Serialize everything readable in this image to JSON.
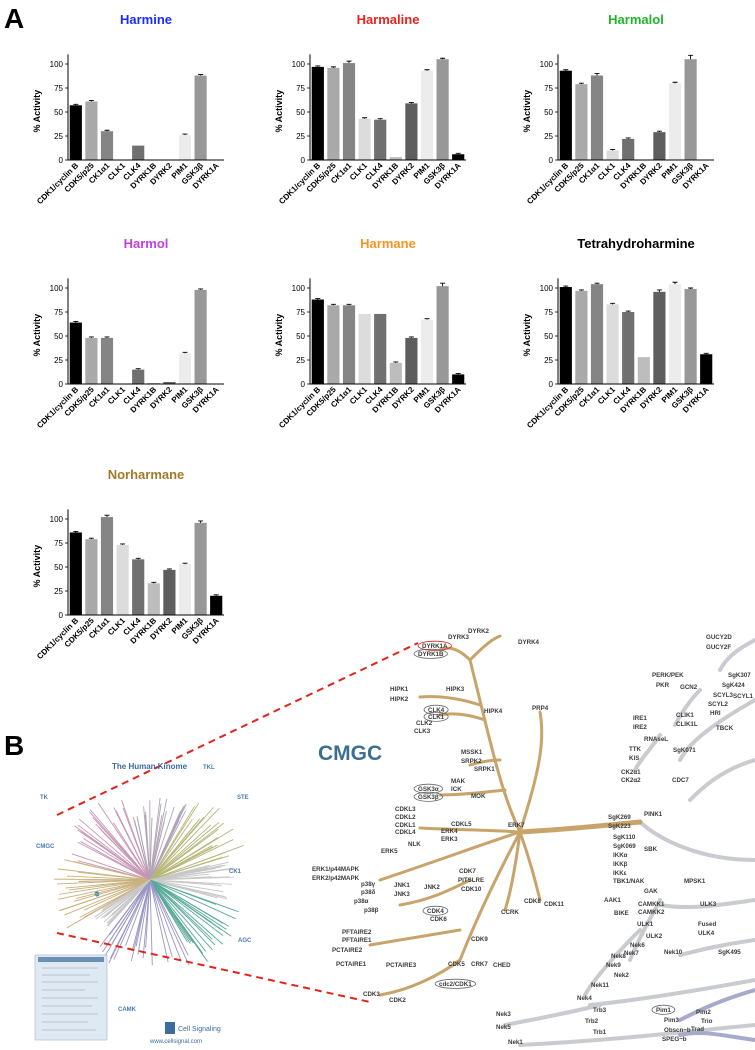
{
  "panel_labels": [
    "A",
    "B"
  ],
  "chart_data": [
    {
      "type": "bar",
      "title": "Harmine",
      "title_color": "#1a2bff",
      "ylabel": "% Activity",
      "categories": [
        "CDK1/cyclin B",
        "CDK5/p25",
        "CK1α1",
        "CLK1",
        "CLK4",
        "DYRK1B",
        "DYRK2",
        "PIM1",
        "GSK3β",
        "DYRK1A"
      ],
      "values": [
        57,
        61,
        30,
        0,
        15,
        0,
        0,
        26,
        88,
        0
      ],
      "errors": [
        1,
        1,
        1,
        0,
        0,
        0,
        0,
        1,
        1,
        0
      ],
      "colors": [
        "#000000",
        "#a9a9a9",
        "#858585",
        "#dcdcdc",
        "#707070",
        "#bdbdbd",
        "#5e5e5e",
        "#ececec",
        "#989898",
        "#000000"
      ],
      "ylim": [
        0,
        110
      ],
      "yticks": [
        0,
        25,
        50,
        75,
        100
      ]
    },
    {
      "type": "bar",
      "title": "Harmaline",
      "title_color": "#e8231e",
      "ylabel": "% Activity",
      "categories": [
        "CDK1/cyclin B",
        "CDK5/p25",
        "CK1α1",
        "CLK1",
        "CLK4",
        "DYRK1B",
        "DYRK2",
        "PIM1",
        "GSK3β",
        "DYRK1A"
      ],
      "values": [
        97,
        96,
        101,
        43,
        42,
        3,
        59,
        93,
        105,
        6
      ],
      "errors": [
        1,
        1,
        2,
        1,
        1,
        0,
        1,
        1,
        1,
        1
      ],
      "colors": [
        "#000000",
        "#a9a9a9",
        "#858585",
        "#dcdcdc",
        "#707070",
        "#bdbdbd",
        "#5e5e5e",
        "#ececec",
        "#989898",
        "#000000"
      ],
      "ylim": [
        0,
        110
      ],
      "yticks": [
        0,
        25,
        50,
        75,
        100
      ]
    },
    {
      "type": "bar",
      "title": "Harmalol",
      "title_color": "#22b52a",
      "ylabel": "% Activity",
      "categories": [
        "CDK1/cyclin B",
        "CDK5/p25",
        "CK1α1",
        "CLK1",
        "CLK4",
        "DYRK1B",
        "DYRK2",
        "PIM1",
        "GSK3β",
        "DYRK1A"
      ],
      "values": [
        93,
        79,
        88,
        10,
        22,
        0,
        29,
        80,
        105,
        0
      ],
      "errors": [
        1,
        1,
        2,
        1,
        1,
        0,
        1,
        1,
        4,
        0
      ],
      "colors": [
        "#000000",
        "#a9a9a9",
        "#858585",
        "#dcdcdc",
        "#707070",
        "#bdbdbd",
        "#5e5e5e",
        "#ececec",
        "#989898",
        "#000000"
      ],
      "ylim": [
        0,
        110
      ],
      "yticks": [
        0,
        25,
        50,
        75,
        100
      ]
    },
    {
      "type": "bar",
      "title": "Harmol",
      "title_color": "#c23fe0",
      "ylabel": "% Activity",
      "categories": [
        "CDK1/cyclin B",
        "CDK5/p25",
        "CK1α1",
        "CLK1",
        "CLK4",
        "DYRK1B",
        "DYRK2",
        "PIM1",
        "GSK3β",
        "DYRK1A"
      ],
      "values": [
        64,
        48,
        48,
        0,
        15,
        1,
        2,
        32,
        98,
        0
      ],
      "errors": [
        1,
        1,
        1,
        0,
        1,
        0,
        0,
        1,
        1,
        0
      ],
      "colors": [
        "#000000",
        "#a9a9a9",
        "#858585",
        "#dcdcdc",
        "#707070",
        "#bdbdbd",
        "#5e5e5e",
        "#ececec",
        "#989898",
        "#000000"
      ],
      "ylim": [
        0,
        110
      ],
      "yticks": [
        0,
        25,
        50,
        75,
        100
      ]
    },
    {
      "type": "bar",
      "title": "Harmane",
      "title_color": "#f7941d",
      "ylabel": "% Activity",
      "categories": [
        "CDK1/cyclin B",
        "CDK5/p25",
        "CK1α1",
        "CLK1",
        "CLK4",
        "DYRK1B",
        "DYRK2",
        "PIM1",
        "GSK3β",
        "DYRK1A"
      ],
      "values": [
        88,
        82,
        82,
        73,
        73,
        22,
        48,
        67,
        102,
        10
      ],
      "errors": [
        1,
        1,
        1,
        0,
        0,
        1,
        1,
        1,
        3,
        1
      ],
      "colors": [
        "#000000",
        "#a9a9a9",
        "#858585",
        "#dcdcdc",
        "#707070",
        "#bdbdbd",
        "#5e5e5e",
        "#ececec",
        "#989898",
        "#000000"
      ],
      "ylim": [
        0,
        110
      ],
      "yticks": [
        0,
        25,
        50,
        75,
        100
      ]
    },
    {
      "type": "bar",
      "title": "Tetrahydroharmine",
      "title_color": "#000000",
      "ylabel": "% Activity",
      "categories": [
        "CDK1/cyclin B",
        "CDK5/p25",
        "CK1α1",
        "CLK1",
        "CLK4",
        "DYRK1B",
        "DYRK2",
        "PIM1",
        "GSK3β",
        "DYRK1A"
      ],
      "values": [
        101,
        97,
        104,
        83,
        75,
        28,
        96,
        104,
        99,
        31
      ],
      "errors": [
        1,
        1,
        1,
        1,
        1,
        0,
        2,
        2,
        1,
        1
      ],
      "colors": [
        "#000000",
        "#a9a9a9",
        "#858585",
        "#dcdcdc",
        "#707070",
        "#bdbdbd",
        "#5e5e5e",
        "#ececec",
        "#989898",
        "#000000"
      ],
      "ylim": [
        0,
        110
      ],
      "yticks": [
        0,
        25,
        50,
        75,
        100
      ]
    },
    {
      "type": "bar",
      "title": "Norharmane",
      "title_color": "#a37a2c",
      "ylabel": "% Activity",
      "categories": [
        "CDK1/cyclin B",
        "CDK5/p25",
        "CK1α1",
        "CLK1",
        "CLK4",
        "DYRK1B",
        "DYRK2",
        "PIM1",
        "GSK3β",
        "DYRK1A"
      ],
      "values": [
        86,
        79,
        102,
        73,
        58,
        33,
        47,
        53,
        96,
        20
      ],
      "errors": [
        1,
        1,
        2,
        1,
        1,
        1,
        1,
        1,
        2,
        1
      ],
      "colors": [
        "#000000",
        "#a9a9a9",
        "#858585",
        "#dcdcdc",
        "#707070",
        "#bdbdbd",
        "#5e5e5e",
        "#ececec",
        "#989898",
        "#000000"
      ],
      "ylim": [
        0,
        110
      ],
      "yticks": [
        0,
        25,
        50,
        75,
        100
      ]
    }
  ],
  "kinome": {
    "overview_title": "The Human Kinome",
    "groups": [
      "TK",
      "TKL",
      "STE",
      "CMGC",
      "CK1",
      "AGC",
      "CAMK"
    ],
    "logo": "Cell Signaling",
    "url": "www.cellsignal.com",
    "family": "CMGC",
    "kinases": [
      "DYRK2",
      "DYRK3",
      "DYRK4",
      "DYRK1A",
      "DYRK1B",
      "GUCY2D",
      "GUCY2F",
      "PERK/PEK",
      "PKR",
      "GCN2",
      "SgK307",
      "SgK424",
      "SCYL3",
      "SCYL1",
      "SCYL2",
      "HRI",
      "TBCK",
      "HIPK1",
      "HIPK3",
      "HIPK2",
      "CLK4",
      "CLK1",
      "CLK2",
      "CLK3",
      "HIPK4",
      "PRP4",
      "IRE1",
      "IRE2",
      "CLIK1",
      "CLIK1L",
      "RNAseL",
      "TTK",
      "KIS",
      "SgK071",
      "MSSK1",
      "SRPK2",
      "SRPK1",
      "CK2α1",
      "CK2α2",
      "CDC7",
      "MAK",
      "ICK",
      "MOK",
      "GSK3α",
      "GSK3β",
      "CDKL3",
      "CDKL2",
      "CDKL1",
      "CDKL4",
      "CDKL5",
      "ERK4",
      "ERK3",
      "ERK7",
      "PINK1",
      "SgK269",
      "SgK223",
      "SgK110",
      "SgK069",
      "SBK",
      "ERK5",
      "NLK",
      "IKKα",
      "IKKβ",
      "IKKε",
      "TBK1/NAK",
      "ERK1/p44MAPK",
      "ERK2/p42MAPK",
      "p38γ",
      "p38δ",
      "p38α",
      "p38β",
      "JNK1",
      "JNK3",
      "JNK2",
      "CDK7",
      "PITSLRE",
      "CDK10",
      "CDK8",
      "CDK11",
      "CCRK",
      "GAK",
      "MPSK1",
      "AAK1",
      "BIKE",
      "CAMKK1",
      "CAMKK2",
      "ULK3",
      "ULK1",
      "Fused",
      "ULK2",
      "ULK4",
      "CDK4",
      "CDK6",
      "PFTAIRE2",
      "PFTAIRE1",
      "PCTAIRE2",
      "PCTAIRE1",
      "PCTAIRE3",
      "CDK9",
      "CDK5",
      "CRK7",
      "CHED",
      "cdc2/CDK1",
      "CDK3",
      "CDK2",
      "Nek8",
      "Nek6",
      "Nek7",
      "Nek10",
      "SgK495",
      "Nek9",
      "Nek2",
      "Nek11",
      "Nek4",
      "Trb3",
      "Pim1",
      "Pim2",
      "Pim3",
      "Trio",
      "Trad",
      "Trb2",
      "Trb1",
      "Obscn~b",
      "SPEG~b",
      "Nek3",
      "Nek5",
      "Nek1"
    ]
  }
}
